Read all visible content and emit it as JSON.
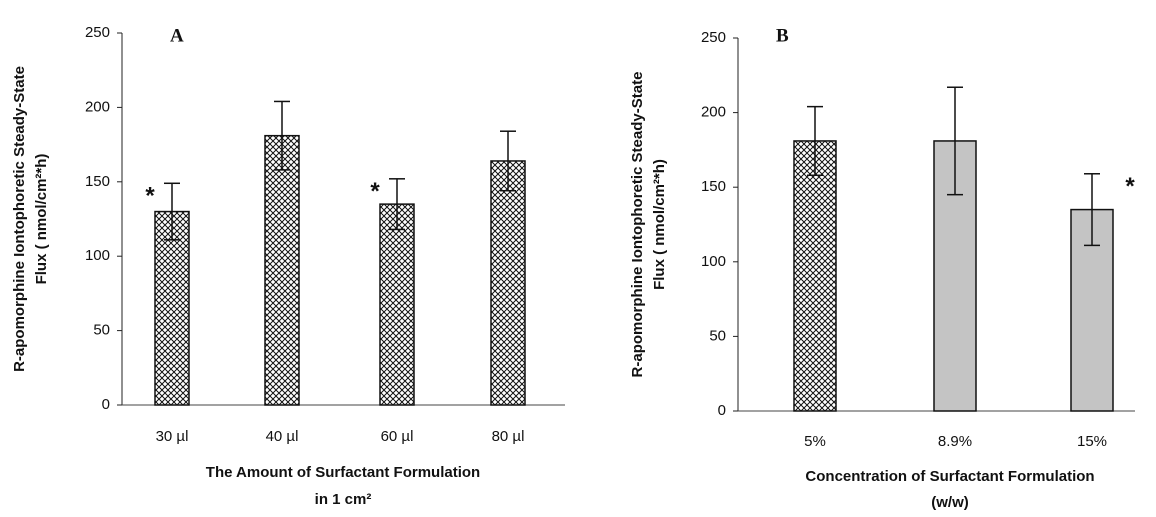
{
  "chart_data": [
    {
      "type": "bar",
      "title": "A",
      "ylabel": [
        "R-apomorphine Iontophoretic Steady-State",
        "Flux ( nmol/cm²*h)"
      ],
      "xlabel": [
        "The Amount of Surfactant Formulation",
        "in 1 cm²"
      ],
      "categories": [
        "30 µl",
        "40 µl",
        "60 µl",
        "80 µl"
      ],
      "values": [
        130,
        181,
        135,
        164
      ],
      "errors": [
        19,
        23,
        17,
        20
      ],
      "markers": [
        "*",
        null,
        "*",
        null
      ],
      "marker_side": "left",
      "hatch": [
        true,
        true,
        true,
        true
      ],
      "colors": [
        "#ffffff",
        "#ffffff",
        "#ffffff",
        "#ffffff"
      ],
      "ylim": [
        0,
        250
      ],
      "yticks": [
        0,
        50,
        100,
        150,
        200,
        250
      ]
    },
    {
      "type": "bar",
      "title": "B",
      "ylabel": [
        "R-apomorphine Iontophoretic Steady-State",
        "Flux ( nmol/cm²*h)"
      ],
      "xlabel": [
        "Concentration of Surfactant Formulation",
        "(w/w)"
      ],
      "categories": [
        "5%",
        "8.9%",
        "15%"
      ],
      "values": [
        181,
        181,
        135
      ],
      "errors": [
        23,
        36,
        24
      ],
      "markers": [
        null,
        null,
        "*"
      ],
      "marker_side": "right",
      "hatch": [
        true,
        false,
        false
      ],
      "colors": [
        "#ffffff",
        "#c4c4c4",
        "#c4c4c4"
      ],
      "ylim": [
        0,
        250
      ],
      "yticks": [
        0,
        50,
        100,
        150,
        200,
        250
      ]
    }
  ]
}
